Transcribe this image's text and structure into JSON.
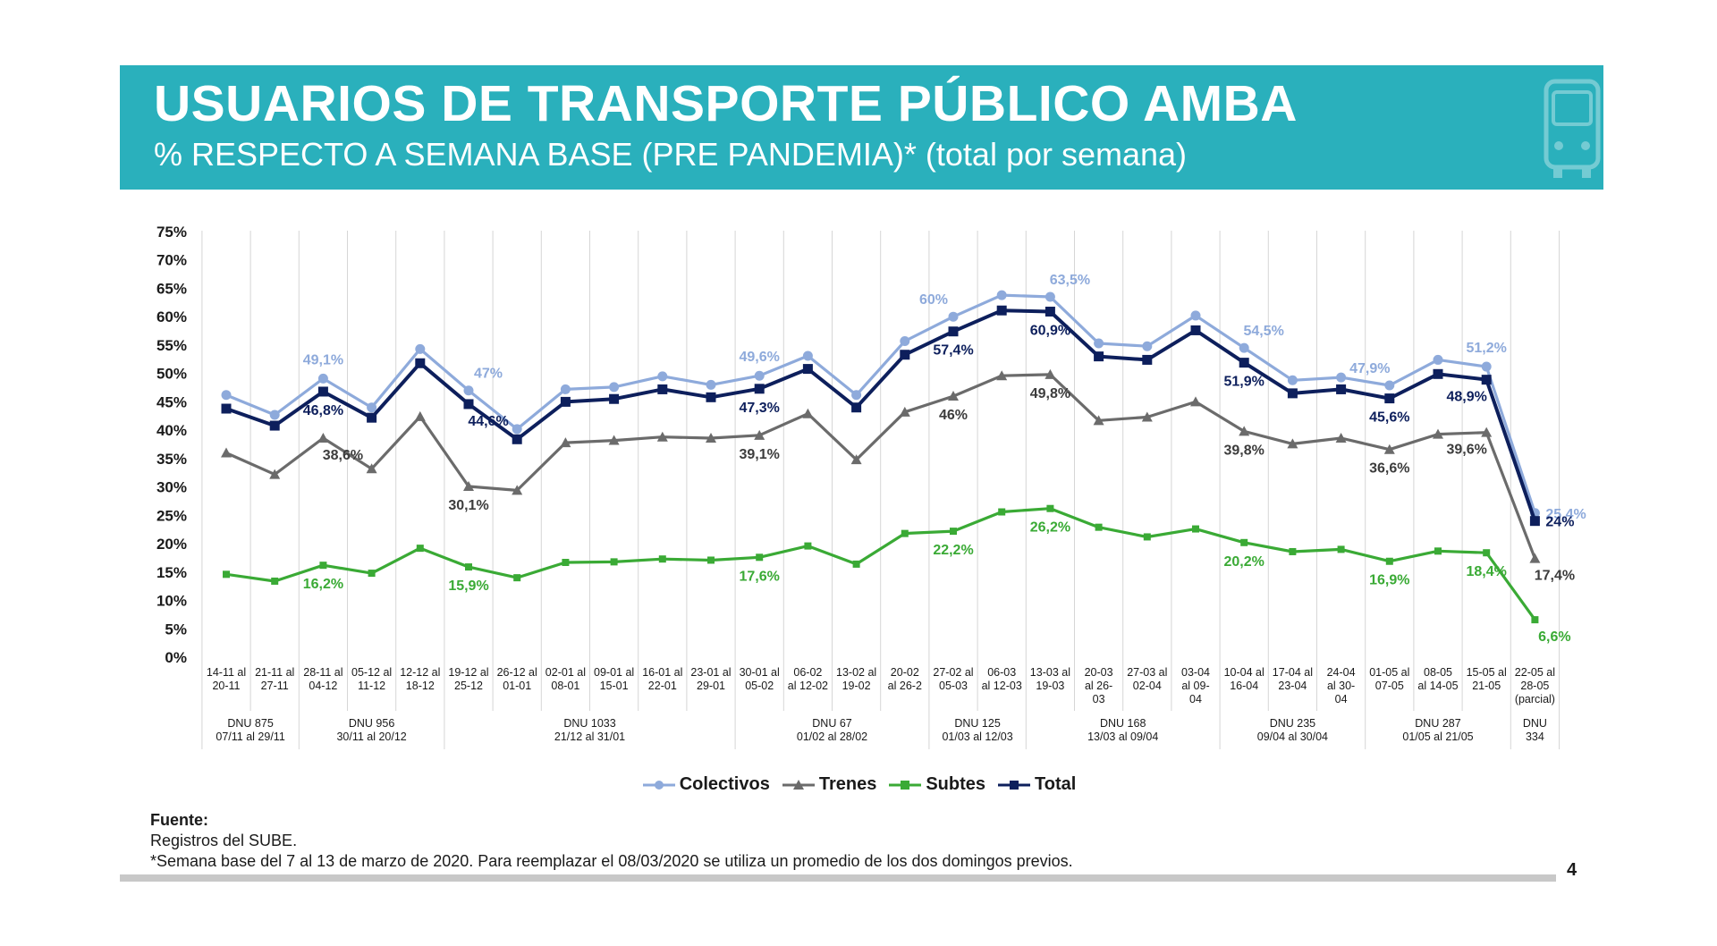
{
  "header": {
    "title": "USUARIOS DE TRANSPORTE PÚBLICO AMBA",
    "subtitle": "% RESPECTO A SEMANA BASE (PRE PANDEMIA)* (total por semana)"
  },
  "chart_data": {
    "type": "line",
    "title": "USUARIOS DE TRANSPORTE PÚBLICO AMBA",
    "subtitle": "% RESPECTO A SEMANA BASE (PRE PANDEMIA)* (total por semana)",
    "ylim": [
      0,
      75
    ],
    "y_ticks": [
      "0%",
      "5%",
      "10%",
      "15%",
      "20%",
      "25%",
      "30%",
      "35%",
      "40%",
      "45%",
      "50%",
      "55%",
      "60%",
      "65%",
      "70%",
      "75%"
    ],
    "grid": "vertical",
    "legend_position": "bottom",
    "categories": [
      [
        "14-11 al",
        "20-11"
      ],
      [
        "21-11 al",
        "27-11"
      ],
      [
        "28-11 al",
        "04-12"
      ],
      [
        "05-12 al",
        "11-12"
      ],
      [
        "12-12 al",
        "18-12"
      ],
      [
        "19-12 al",
        "25-12"
      ],
      [
        "26-12 al",
        "01-01"
      ],
      [
        "02-01 al",
        "08-01"
      ],
      [
        "09-01 al",
        "15-01"
      ],
      [
        "16-01 al",
        "22-01"
      ],
      [
        "23-01 al",
        "29-01"
      ],
      [
        "30-01 al",
        "05-02"
      ],
      [
        "06-02",
        "al 12-02"
      ],
      [
        "13-02 al",
        "19-02"
      ],
      [
        "20-02",
        "al 26-2"
      ],
      [
        "27-02 al",
        "05-03"
      ],
      [
        "06-03",
        "al 12-03"
      ],
      [
        "13-03 al",
        "19-03"
      ],
      [
        "20-03",
        "al 26-",
        "03"
      ],
      [
        "27-03 al",
        "02-04"
      ],
      [
        "03-04",
        "al 09-",
        "04"
      ],
      [
        "10-04 al",
        "16-04"
      ],
      [
        "17-04 al",
        "23-04"
      ],
      [
        "24-04",
        "al 30-",
        "04"
      ],
      [
        "01-05 al",
        "07-05"
      ],
      [
        "08-05",
        "al 14-05"
      ],
      [
        "15-05 al",
        "21-05"
      ],
      [
        "22-05 al",
        "28-05",
        "(parcial)"
      ]
    ],
    "dnu_groups": [
      {
        "label": [
          "DNU 875",
          "07/11 al 29/11"
        ],
        "start": 0,
        "end": 1
      },
      {
        "label": [
          "DNU 956",
          "30/11 al 20/12"
        ],
        "start": 2,
        "end": 4
      },
      {
        "label": [
          "DNU 1033",
          "21/12 al 31/01"
        ],
        "start": 5,
        "end": 10
      },
      {
        "label": [
          "DNU 67",
          "01/02 al 28/02"
        ],
        "start": 11,
        "end": 14
      },
      {
        "label": [
          "DNU 125",
          "01/03 al 12/03"
        ],
        "start": 15,
        "end": 16
      },
      {
        "label": [
          "DNU 168",
          "13/03 al 09/04"
        ],
        "start": 17,
        "end": 20
      },
      {
        "label": [
          "DNU 235",
          "09/04 al 30/04"
        ],
        "start": 21,
        "end": 23
      },
      {
        "label": [
          "DNU 287",
          "01/05 al 21/05"
        ],
        "start": 24,
        "end": 26
      },
      {
        "label": [
          "DNU",
          "334"
        ],
        "start": 27,
        "end": 27
      }
    ],
    "series": [
      {
        "name": "Colectivos",
        "color": "#8eaadb",
        "marker": "circle",
        "values": [
          46.2,
          42.7,
          49.1,
          44.0,
          54.3,
          47.0,
          40.2,
          47.2,
          47.6,
          49.5,
          48.0,
          49.6,
          53.1,
          46.2,
          55.7,
          60.0,
          63.8,
          63.5,
          55.3,
          54.8,
          60.2,
          54.5,
          48.8,
          49.3,
          47.9,
          52.4,
          51.2,
          25.4
        ],
        "labels": [
          {
            "i": 2,
            "text": "49,1%",
            "pos": "above"
          },
          {
            "i": 5,
            "text": "47%",
            "pos": "above-right"
          },
          {
            "i": 11,
            "text": "49,6%",
            "pos": "above"
          },
          {
            "i": 15,
            "text": "60%",
            "pos": "above-left"
          },
          {
            "i": 17,
            "text": "63,5%",
            "pos": "above-right"
          },
          {
            "i": 21,
            "text": "54,5%",
            "pos": "above-right"
          },
          {
            "i": 24,
            "text": "47,9%",
            "pos": "above-left"
          },
          {
            "i": 26,
            "text": "51,2%",
            "pos": "above"
          },
          {
            "i": 27,
            "text": "25,4%",
            "pos": "right"
          }
        ]
      },
      {
        "name": "Trenes",
        "color": "#6b6b6b",
        "marker": "triangle",
        "values": [
          36.0,
          32.2,
          38.6,
          33.2,
          42.4,
          30.1,
          29.4,
          37.8,
          38.2,
          38.8,
          38.6,
          39.1,
          42.9,
          34.8,
          43.2,
          46.0,
          49.6,
          49.8,
          41.7,
          42.3,
          45.0,
          39.8,
          37.6,
          38.6,
          36.6,
          39.3,
          39.6,
          17.4
        ],
        "labels": [
          {
            "i": 2,
            "text": "38,6%",
            "pos": "below-right"
          },
          {
            "i": 5,
            "text": "30,1%",
            "pos": "below"
          },
          {
            "i": 11,
            "text": "39,1%",
            "pos": "below"
          },
          {
            "i": 15,
            "text": "46%",
            "pos": "below"
          },
          {
            "i": 17,
            "text": "49,8%",
            "pos": "below"
          },
          {
            "i": 21,
            "text": "39,8%",
            "pos": "below"
          },
          {
            "i": 24,
            "text": "36,6%",
            "pos": "below"
          },
          {
            "i": 26,
            "text": "39,6%",
            "pos": "below-left"
          },
          {
            "i": 27,
            "text": "17,4%",
            "pos": "below-right"
          }
        ]
      },
      {
        "name": "Subtes",
        "color": "#3aaa35",
        "marker": "square",
        "values": [
          14.6,
          13.4,
          16.2,
          14.8,
          19.2,
          15.9,
          14.0,
          16.7,
          16.8,
          17.3,
          17.1,
          17.6,
          19.6,
          16.4,
          21.8,
          22.2,
          25.6,
          26.2,
          22.9,
          21.2,
          22.6,
          20.2,
          18.6,
          19.0,
          16.9,
          18.7,
          18.4,
          6.6
        ],
        "labels": [
          {
            "i": 2,
            "text": "16,2%",
            "pos": "below"
          },
          {
            "i": 5,
            "text": "15,9%",
            "pos": "below"
          },
          {
            "i": 11,
            "text": "17,6%",
            "pos": "below"
          },
          {
            "i": 15,
            "text": "22,2%",
            "pos": "below"
          },
          {
            "i": 17,
            "text": "26,2%",
            "pos": "below"
          },
          {
            "i": 21,
            "text": "20,2%",
            "pos": "below"
          },
          {
            "i": 24,
            "text": "16,9%",
            "pos": "below"
          },
          {
            "i": 26,
            "text": "18,4%",
            "pos": "below"
          },
          {
            "i": 27,
            "text": "6,6%",
            "pos": "below-right"
          }
        ]
      },
      {
        "name": "Total",
        "color": "#0d1f5c",
        "marker": "square",
        "values": [
          43.8,
          40.8,
          46.8,
          42.2,
          51.8,
          44.6,
          38.4,
          45.0,
          45.5,
          47.2,
          45.8,
          47.3,
          50.8,
          44.0,
          53.3,
          57.4,
          61.1,
          60.9,
          53.0,
          52.4,
          57.6,
          51.9,
          46.5,
          47.2,
          45.6,
          49.9,
          48.9,
          24.0
        ],
        "labels": [
          {
            "i": 2,
            "text": "46,8%",
            "pos": "below"
          },
          {
            "i": 5,
            "text": "44,6%",
            "pos": "below-right"
          },
          {
            "i": 11,
            "text": "47,3%",
            "pos": "below"
          },
          {
            "i": 15,
            "text": "57,4%",
            "pos": "below"
          },
          {
            "i": 17,
            "text": "60,9%",
            "pos": "below"
          },
          {
            "i": 21,
            "text": "51,9%",
            "pos": "below"
          },
          {
            "i": 24,
            "text": "45,6%",
            "pos": "below"
          },
          {
            "i": 26,
            "text": "48,9%",
            "pos": "below-left"
          },
          {
            "i": 27,
            "text": "24%",
            "pos": "right"
          }
        ]
      }
    ]
  },
  "footer": {
    "title": "Fuente:",
    "line1": "Registros del SUBE.",
    "line2": "*Semana base del 7 al 13 de marzo de 2020. Para reemplazar el 08/03/2020 se utiliza un promedio de los dos domingos previos."
  },
  "page_number": "4"
}
